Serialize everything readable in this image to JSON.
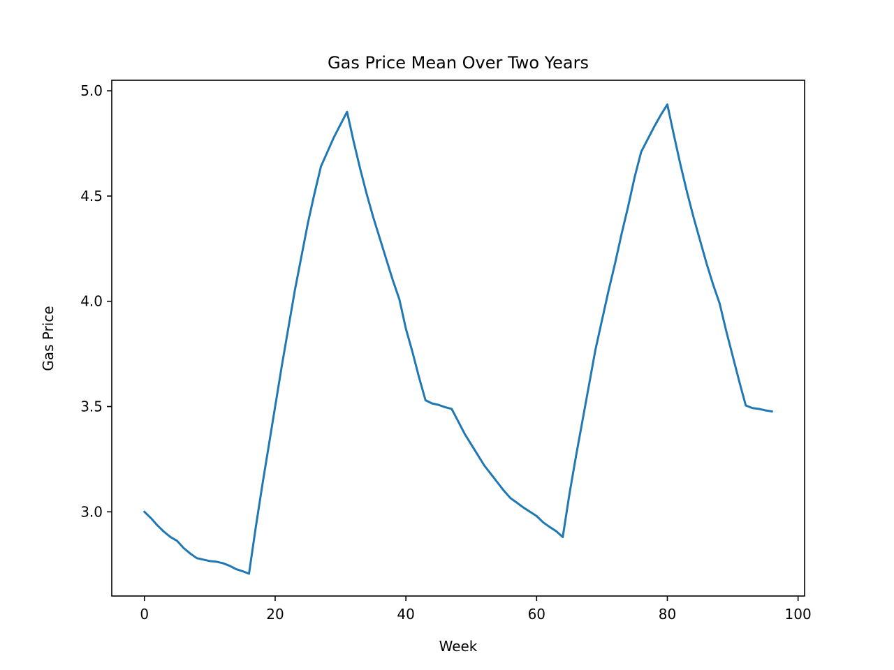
{
  "chart_data": {
    "type": "line",
    "title": "Gas Price Mean Over Two Years",
    "xlabel": "Week",
    "ylabel": "Gas Price",
    "xlim": [
      -5,
      101
    ],
    "ylim": [
      2.6,
      5.05
    ],
    "xticks": [
      0,
      20,
      40,
      60,
      80,
      100
    ],
    "yticks": [
      3.0,
      3.5,
      4.0,
      4.5,
      5.0
    ],
    "xtick_labels": [
      "0",
      "20",
      "40",
      "60",
      "80",
      "100"
    ],
    "ytick_labels": [
      "3.0",
      "3.5",
      "4.0",
      "4.5",
      "5.0"
    ],
    "grid": false,
    "line_color": "#1f77b4",
    "series": [
      {
        "x": [
          0,
          1,
          2,
          3,
          4,
          5,
          6,
          7,
          8,
          9,
          10,
          11,
          12,
          13,
          14,
          15,
          16,
          17,
          18,
          19,
          20,
          21,
          22,
          23,
          24,
          25,
          26,
          27,
          28,
          29,
          30,
          31,
          32,
          33,
          34,
          35,
          36,
          37,
          38,
          39,
          40,
          41,
          42,
          43,
          44,
          45,
          46,
          47,
          48,
          49,
          50,
          51,
          52,
          53,
          54,
          55,
          56,
          57,
          58,
          59,
          60,
          61,
          62,
          63,
          64,
          65,
          66,
          67,
          68,
          69,
          70,
          71,
          72,
          73,
          74,
          75,
          76,
          77,
          78,
          79,
          80,
          81,
          82,
          83,
          84,
          85,
          86,
          87,
          88,
          89,
          90,
          91,
          92,
          93,
          94,
          95,
          96
        ],
        "y": [
          3.0,
          2.97,
          2.935,
          2.905,
          2.88,
          2.862,
          2.828,
          2.802,
          2.78,
          2.773,
          2.766,
          2.763,
          2.756,
          2.744,
          2.728,
          2.718,
          2.706,
          2.92,
          3.12,
          3.31,
          3.5,
          3.69,
          3.87,
          4.05,
          4.21,
          4.37,
          4.51,
          4.64,
          4.71,
          4.78,
          4.84,
          4.9,
          4.76,
          4.63,
          4.51,
          4.4,
          4.3,
          4.2,
          4.1,
          4.01,
          3.87,
          3.76,
          3.64,
          3.53,
          3.515,
          3.508,
          3.497,
          3.489,
          3.43,
          3.37,
          3.32,
          3.27,
          3.22,
          3.18,
          3.14,
          3.1,
          3.065,
          3.043,
          3.02,
          3.0,
          2.98,
          2.95,
          2.928,
          2.908,
          2.88,
          3.08,
          3.26,
          3.43,
          3.6,
          3.77,
          3.91,
          4.05,
          4.18,
          4.32,
          4.45,
          4.59,
          4.71,
          4.77,
          4.83,
          4.885,
          4.935,
          4.79,
          4.65,
          4.52,
          4.4,
          4.29,
          4.18,
          4.08,
          3.99,
          3.86,
          3.74,
          3.62,
          3.505,
          3.493,
          3.489,
          3.482,
          3.477
        ]
      }
    ]
  }
}
